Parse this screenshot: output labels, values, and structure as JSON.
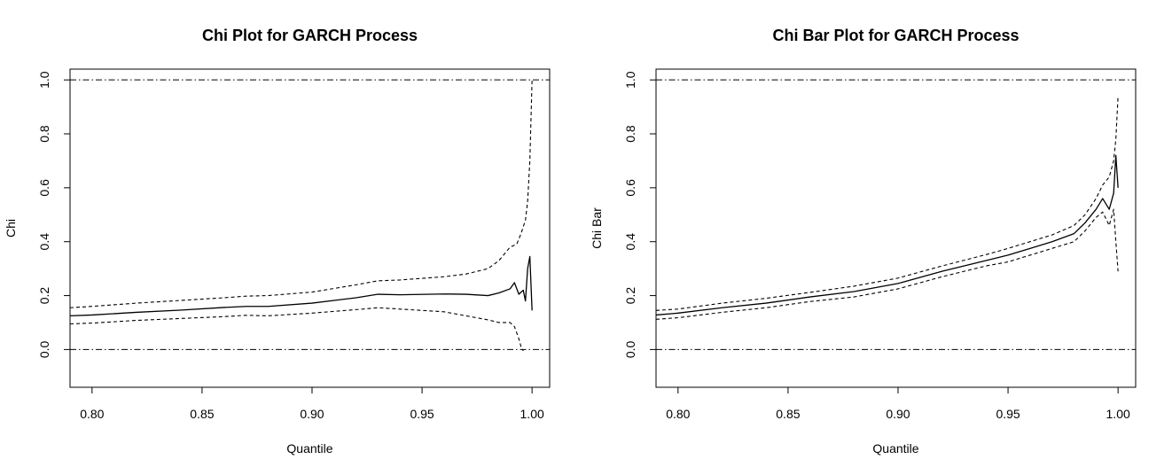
{
  "chart_data": [
    {
      "type": "line",
      "title": "Chi Plot for GARCH Process",
      "xlabel": "Quantile",
      "ylabel": "Chi",
      "xlim": [
        0.79,
        1.008
      ],
      "ylim": [
        -0.14,
        1.04
      ],
      "x_ticks": [
        "0.80",
        "0.85",
        "0.90",
        "0.95",
        "1.00"
      ],
      "y_ticks": [
        "0.0",
        "0.2",
        "0.4",
        "0.6",
        "0.8",
        "1.0"
      ],
      "reference_lines": [
        0,
        1
      ],
      "grid": false,
      "series": [
        {
          "style": "solid",
          "x": [
            0.79,
            0.8,
            0.82,
            0.84,
            0.86,
            0.87,
            0.88,
            0.9,
            0.92,
            0.93,
            0.94,
            0.96,
            0.97,
            0.98,
            0.985,
            0.99,
            0.992,
            0.994,
            0.996,
            0.997,
            0.998,
            0.999,
            1.0
          ],
          "y": [
            0.125,
            0.128,
            0.138,
            0.146,
            0.156,
            0.16,
            0.16,
            0.172,
            0.192,
            0.205,
            0.203,
            0.206,
            0.205,
            0.2,
            0.21,
            0.225,
            0.248,
            0.205,
            0.22,
            0.18,
            0.3,
            0.345,
            0.145
          ]
        },
        {
          "style": "dashed",
          "x": [
            0.79,
            0.8,
            0.82,
            0.84,
            0.86,
            0.87,
            0.88,
            0.9,
            0.92,
            0.93,
            0.94,
            0.96,
            0.97,
            0.98,
            0.985,
            0.99,
            0.993,
            0.995,
            0.997,
            0.998,
            0.999,
            1.0
          ],
          "y": [
            0.155,
            0.16,
            0.172,
            0.182,
            0.192,
            0.198,
            0.2,
            0.213,
            0.24,
            0.255,
            0.258,
            0.27,
            0.28,
            0.3,
            0.33,
            0.38,
            0.39,
            0.43,
            0.48,
            0.55,
            0.7,
            1.0
          ]
        },
        {
          "style": "dashed",
          "x": [
            0.79,
            0.8,
            0.82,
            0.84,
            0.86,
            0.87,
            0.88,
            0.9,
            0.92,
            0.93,
            0.94,
            0.96,
            0.97,
            0.98,
            0.985,
            0.99,
            0.992,
            0.994,
            0.995,
            0.996
          ],
          "y": [
            0.095,
            0.098,
            0.108,
            0.115,
            0.122,
            0.127,
            0.125,
            0.135,
            0.148,
            0.155,
            0.15,
            0.14,
            0.125,
            0.11,
            0.1,
            0.1,
            0.085,
            0.04,
            0.01,
            -0.005
          ]
        }
      ]
    },
    {
      "type": "line",
      "title": "Chi Bar Plot for GARCH Process",
      "xlabel": "Quantile",
      "ylabel": "Chi Bar",
      "xlim": [
        0.79,
        1.008
      ],
      "ylim": [
        -0.14,
        1.04
      ],
      "x_ticks": [
        "0.80",
        "0.85",
        "0.90",
        "0.95",
        "1.00"
      ],
      "y_ticks": [
        "0.0",
        "0.2",
        "0.4",
        "0.6",
        "0.8",
        "1.0"
      ],
      "reference_lines": [
        0,
        1
      ],
      "grid": false,
      "series": [
        {
          "style": "solid",
          "x": [
            0.79,
            0.8,
            0.82,
            0.84,
            0.86,
            0.88,
            0.9,
            0.92,
            0.94,
            0.95,
            0.96,
            0.97,
            0.98,
            0.985,
            0.99,
            0.993,
            0.996,
            0.998,
            0.999,
            1.0
          ],
          "y": [
            0.128,
            0.135,
            0.155,
            0.172,
            0.195,
            0.215,
            0.245,
            0.29,
            0.33,
            0.35,
            0.375,
            0.4,
            0.43,
            0.47,
            0.52,
            0.56,
            0.52,
            0.58,
            0.72,
            0.6
          ]
        },
        {
          "style": "dashed",
          "x": [
            0.79,
            0.8,
            0.82,
            0.84,
            0.86,
            0.88,
            0.9,
            0.92,
            0.94,
            0.95,
            0.96,
            0.97,
            0.98,
            0.985,
            0.99,
            0.993,
            0.996,
            0.998,
            0.999,
            1.0
          ],
          "y": [
            0.145,
            0.15,
            0.172,
            0.19,
            0.212,
            0.235,
            0.265,
            0.31,
            0.352,
            0.375,
            0.4,
            0.425,
            0.46,
            0.5,
            0.56,
            0.61,
            0.64,
            0.7,
            0.78,
            0.94
          ]
        },
        {
          "style": "dashed",
          "x": [
            0.79,
            0.8,
            0.82,
            0.84,
            0.86,
            0.88,
            0.9,
            0.92,
            0.94,
            0.95,
            0.96,
            0.97,
            0.98,
            0.985,
            0.99,
            0.993,
            0.996,
            0.998,
            0.999,
            1.0
          ],
          "y": [
            0.112,
            0.118,
            0.138,
            0.155,
            0.178,
            0.195,
            0.225,
            0.27,
            0.31,
            0.325,
            0.35,
            0.375,
            0.4,
            0.44,
            0.49,
            0.51,
            0.46,
            0.52,
            0.4,
            0.29
          ]
        }
      ]
    }
  ]
}
